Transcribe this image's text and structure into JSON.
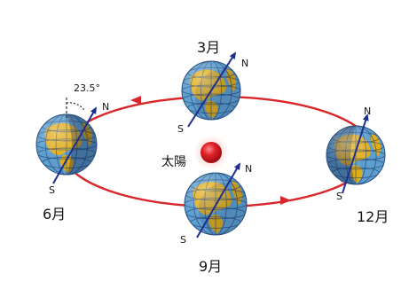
{
  "sun": {
    "label": "太陽"
  },
  "tilt": {
    "label": "23.5°"
  },
  "positions": [
    {
      "id": "march",
      "month": "3月",
      "north": "N",
      "south": "S"
    },
    {
      "id": "june",
      "month": "6月",
      "north": "N",
      "south": "S"
    },
    {
      "id": "september",
      "month": "9月",
      "north": "N",
      "south": "S"
    },
    {
      "id": "december",
      "month": "12月",
      "north": "N",
      "south": "S"
    }
  ],
  "colors": {
    "orbit": "#d8262b",
    "sun": "#d3181f",
    "ocean": "#5d9fcf",
    "land": "#e0ad1a",
    "axis": "#1d2f8e",
    "night_shade": "#0b1a3a"
  }
}
